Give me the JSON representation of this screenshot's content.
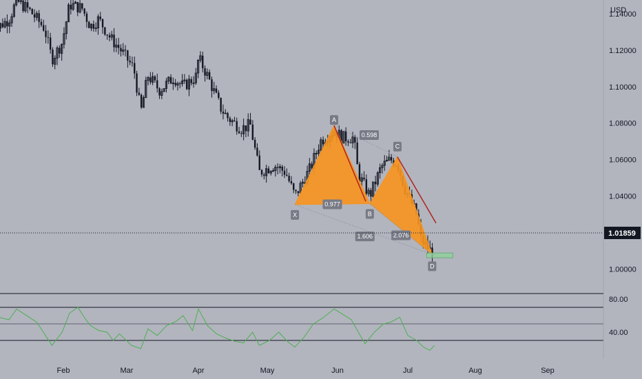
{
  "currency": "USD",
  "last_price": "1.01859",
  "colors": {
    "background": "#b2b5be",
    "candle": "#131722",
    "pattern_fill": "#f7931e",
    "trendline": "#b2221c",
    "rsi_line": "#4caf50",
    "label_bg": "#787b86",
    "target_zone": "#8fd19e"
  },
  "pattern_points": {
    "x": "X",
    "a": "A",
    "b": "B",
    "c": "C",
    "d": "D"
  },
  "pattern_ratios": {
    "xb": "0.977",
    "ac": "0.598",
    "xd": "1.606",
    "bd": "2.076"
  },
  "chart_data": [
    {
      "type": "candlestick",
      "title": "",
      "x_ticks": [
        "Feb",
        "Mar",
        "Apr",
        "May",
        "Jun",
        "Jul",
        "Aug",
        "Sep"
      ],
      "y_ticks": [
        "1.14000",
        "1.12000",
        "1.10000",
        "1.08000",
        "1.06000",
        "1.04000",
        "1.00000"
      ],
      "ylim": [
        0.987,
        1.1475
      ],
      "grid": false,
      "pattern": {
        "X": {
          "date": "May 13",
          "price": 1.0354
        },
        "A": {
          "date": "May 30",
          "price": 1.0787
        },
        "B": {
          "date": "Jun 15",
          "price": 1.0359
        },
        "C": {
          "date": "Jun 27",
          "price": 1.0615
        },
        "D": {
          "date": "Jul 12",
          "price": 1.008
        }
      },
      "close_path": [
        [
          "Jan 03",
          1.13
        ],
        [
          "Jan 10",
          1.137
        ],
        [
          "Jan 13",
          1.147
        ],
        [
          "Jan 18",
          1.142
        ],
        [
          "Jan 24",
          1.132
        ],
        [
          "Jan 27",
          1.115
        ],
        [
          "Jan 31",
          1.124
        ],
        [
          "Feb 04",
          1.145
        ],
        [
          "Feb 10",
          1.143
        ],
        [
          "Feb 14",
          1.133
        ],
        [
          "Feb 18",
          1.137
        ],
        [
          "Feb 24",
          1.126
        ],
        [
          "Feb 28",
          1.121
        ],
        [
          "Mar 04",
          1.11
        ],
        [
          "Mar 07",
          1.086
        ],
        [
          "Mar 10",
          1.106
        ],
        [
          "Mar 15",
          1.098
        ],
        [
          "Mar 21",
          1.105
        ],
        [
          "Mar 25",
          1.1
        ],
        [
          "Mar 31",
          1.106
        ],
        [
          "Apr 01",
          1.116
        ],
        [
          "Apr 05",
          1.106
        ],
        [
          "Apr 11",
          1.088
        ],
        [
          "Apr 14",
          1.083
        ],
        [
          "Apr 20",
          1.077
        ],
        [
          "Apr 24",
          1.079
        ],
        [
          "Apr 28",
          1.053
        ],
        [
          "May 04",
          1.057
        ],
        [
          "May 09",
          1.053
        ],
        [
          "May 13",
          1.04
        ],
        [
          "May 20",
          1.056
        ],
        [
          "May 24",
          1.07
        ],
        [
          "May 30",
          1.076
        ],
        [
          "Jun 03",
          1.072
        ],
        [
          "Jun 08",
          1.072
        ],
        [
          "Jun 10",
          1.052
        ],
        [
          "Jun 15",
          1.04
        ],
        [
          "Jun 20",
          1.056
        ],
        [
          "Jun 24",
          1.06
        ],
        [
          "Jun 27",
          1.058
        ],
        [
          "Jun 30",
          1.045
        ],
        [
          "Jul 05",
          1.03
        ],
        [
          "Jul 07",
          1.016
        ],
        [
          "Jul 12",
          1.009
        ],
        [
          "Jul 13",
          1.0186
        ]
      ]
    },
    {
      "type": "line",
      "title": "",
      "y_ticks": [
        "80.00",
        "40.00"
      ],
      "levels": [
        70,
        50,
        30
      ],
      "series": [
        {
          "values": [
            [
              "Jan 03",
              48
            ],
            [
              "Jan 06",
              58
            ],
            [
              "Jan 10",
              55
            ],
            [
              "Jan 13",
              68
            ],
            [
              "Jan 18",
              58
            ],
            [
              "Jan 21",
              52
            ],
            [
              "Jan 24",
              38
            ],
            [
              "Jan 27",
              24
            ],
            [
              "Jan 31",
              40
            ],
            [
              "Feb 04",
              63
            ],
            [
              "Feb 08",
              70
            ],
            [
              "Feb 11",
              58
            ],
            [
              "Feb 14",
              48
            ],
            [
              "Feb 18",
              42
            ],
            [
              "Feb 22",
              40
            ],
            [
              "Feb 25",
              30
            ],
            [
              "Feb 28",
              38
            ],
            [
              "Mar 03",
              24
            ],
            [
              "Mar 07",
              20
            ],
            [
              "Mar 10",
              44
            ],
            [
              "Mar 14",
              36
            ],
            [
              "Mar 18",
              48
            ],
            [
              "Mar 22",
              53
            ],
            [
              "Mar 25",
              60
            ],
            [
              "Mar 29",
              42
            ],
            [
              "Apr 01",
              68
            ],
            [
              "Apr 05",
              48
            ],
            [
              "Apr 09",
              38
            ],
            [
              "Apr 13",
              33
            ],
            [
              "Apr 17",
              29
            ],
            [
              "Apr 21",
              27
            ],
            [
              "Apr 25",
              40
            ],
            [
              "Apr 28",
              24
            ],
            [
              "May 02",
              30
            ],
            [
              "May 06",
              40
            ],
            [
              "May 10",
              28
            ],
            [
              "May 13",
              22
            ],
            [
              "May 17",
              34
            ],
            [
              "May 21",
              50
            ],
            [
              "May 25",
              57
            ],
            [
              "May 30",
              68
            ],
            [
              "Jun 03",
              62
            ],
            [
              "Jun 07",
              55
            ],
            [
              "Jun 10",
              40
            ],
            [
              "Jun 13",
              26
            ],
            [
              "Jun 17",
              40
            ],
            [
              "Jun 21",
              50
            ],
            [
              "Jun 24",
              52
            ],
            [
              "Jun 28",
              58
            ],
            [
              "Jul 01",
              36
            ],
            [
              "Jul 05",
              30
            ],
            [
              "Jul 08",
              22
            ],
            [
              "Jul 11",
              18
            ],
            [
              "Jul 13",
              24
            ]
          ]
        }
      ]
    }
  ]
}
